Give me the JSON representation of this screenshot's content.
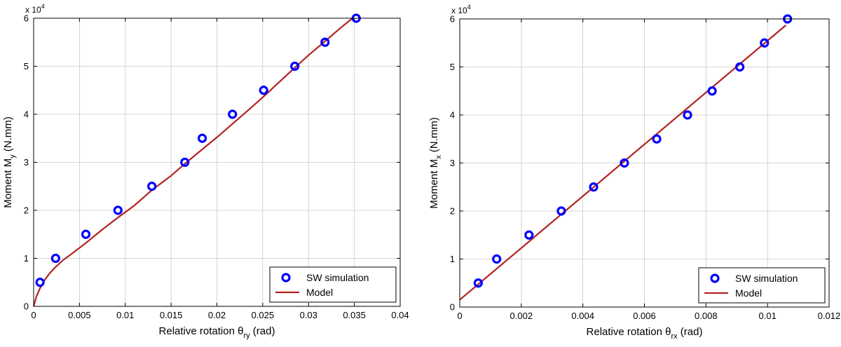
{
  "chart_data": [
    {
      "type": "scatter",
      "xlabel": {
        "main": "Relative rotation ",
        "symbol": "θ",
        "sub": "ry",
        "unit": " (rad)"
      },
      "ylabel": {
        "main": "Moment M",
        "sub": "y",
        "unit": " (N.mm)"
      },
      "y_multiplier": {
        "base": "x 10",
        "exp": "4"
      },
      "xlim": [
        0,
        0.04
      ],
      "ylim": [
        0,
        6
      ],
      "xticks": [
        "0",
        "0.005",
        "0.01",
        "0.015",
        "0.02",
        "0.025",
        "0.03",
        "0.035",
        "0.04"
      ],
      "yticks": [
        "0",
        "1",
        "2",
        "3",
        "4",
        "5",
        "6"
      ],
      "grid": true,
      "legend_position": "bottom-right",
      "series": [
        {
          "name": "SW simulation",
          "kind": "markers",
          "color": "#0000ff",
          "points": [
            [
              0.0007,
              0.5
            ],
            [
              0.0024,
              1.0
            ],
            [
              0.0057,
              1.5
            ],
            [
              0.0092,
              2.0
            ],
            [
              0.0129,
              2.5
            ],
            [
              0.0165,
              3.0
            ],
            [
              0.0184,
              3.5
            ],
            [
              0.0217,
              4.0
            ],
            [
              0.0251,
              4.5
            ],
            [
              0.0285,
              5.0
            ],
            [
              0.0318,
              5.5
            ],
            [
              0.0352,
              6.0
            ]
          ]
        },
        {
          "name": "Model",
          "kind": "line",
          "color": "#b22222",
          "points": [
            [
              0.0,
              0.0
            ],
            [
              0.0003,
              0.2
            ],
            [
              0.0007,
              0.38
            ],
            [
              0.0012,
              0.55
            ],
            [
              0.0018,
              0.7
            ],
            [
              0.0024,
              0.82
            ],
            [
              0.0032,
              0.96
            ],
            [
              0.0042,
              1.1
            ],
            [
              0.0057,
              1.32
            ],
            [
              0.0075,
              1.6
            ],
            [
              0.0092,
              1.85
            ],
            [
              0.011,
              2.1
            ],
            [
              0.0129,
              2.42
            ],
            [
              0.015,
              2.72
            ],
            [
              0.0165,
              2.97
            ],
            [
              0.0184,
              3.27
            ],
            [
              0.02,
              3.52
            ],
            [
              0.0217,
              3.8
            ],
            [
              0.0235,
              4.1
            ],
            [
              0.0251,
              4.37
            ],
            [
              0.0268,
              4.67
            ],
            [
              0.0285,
              4.97
            ],
            [
              0.03,
              5.23
            ],
            [
              0.0318,
              5.52
            ],
            [
              0.0335,
              5.8
            ],
            [
              0.0348,
              6.0
            ]
          ]
        }
      ]
    },
    {
      "type": "scatter",
      "xlabel": {
        "main": "Relative rotation ",
        "symbol": "θ",
        "sub": "rx",
        "unit": " (rad)"
      },
      "ylabel": {
        "main": "Moment M",
        "sub": "x",
        "unit": " (N.mm)"
      },
      "y_multiplier": {
        "base": "x 10",
        "exp": "4"
      },
      "xlim": [
        0,
        0.012
      ],
      "ylim": [
        0,
        6
      ],
      "xticks": [
        "0",
        "0.002",
        "0.004",
        "0.006",
        "0.008",
        "0.01",
        "0.012"
      ],
      "yticks": [
        "0",
        "1",
        "2",
        "3",
        "4",
        "5",
        "6"
      ],
      "grid": true,
      "legend_position": "bottom-right",
      "series": [
        {
          "name": "SW simulation",
          "kind": "markers",
          "color": "#0000ff",
          "points": [
            [
              0.0006,
              0.5
            ],
            [
              0.0012,
              1.0
            ],
            [
              0.00225,
              1.5
            ],
            [
              0.0033,
              2.0
            ],
            [
              0.00435,
              2.5
            ],
            [
              0.00535,
              3.0
            ],
            [
              0.0064,
              3.5
            ],
            [
              0.0074,
              4.0
            ],
            [
              0.0082,
              4.5
            ],
            [
              0.0091,
              5.0
            ],
            [
              0.0099,
              5.5
            ],
            [
              0.01065,
              6.0
            ]
          ]
        },
        {
          "name": "Model",
          "kind": "line",
          "color": "#b22222",
          "points": [
            [
              0.0,
              0.15
            ],
            [
              0.0106,
              5.87
            ]
          ]
        }
      ]
    }
  ],
  "colors": {
    "grid": "#c8c8c8",
    "axis": "#000000",
    "marker": "#0000ff",
    "model": "#b22222"
  }
}
